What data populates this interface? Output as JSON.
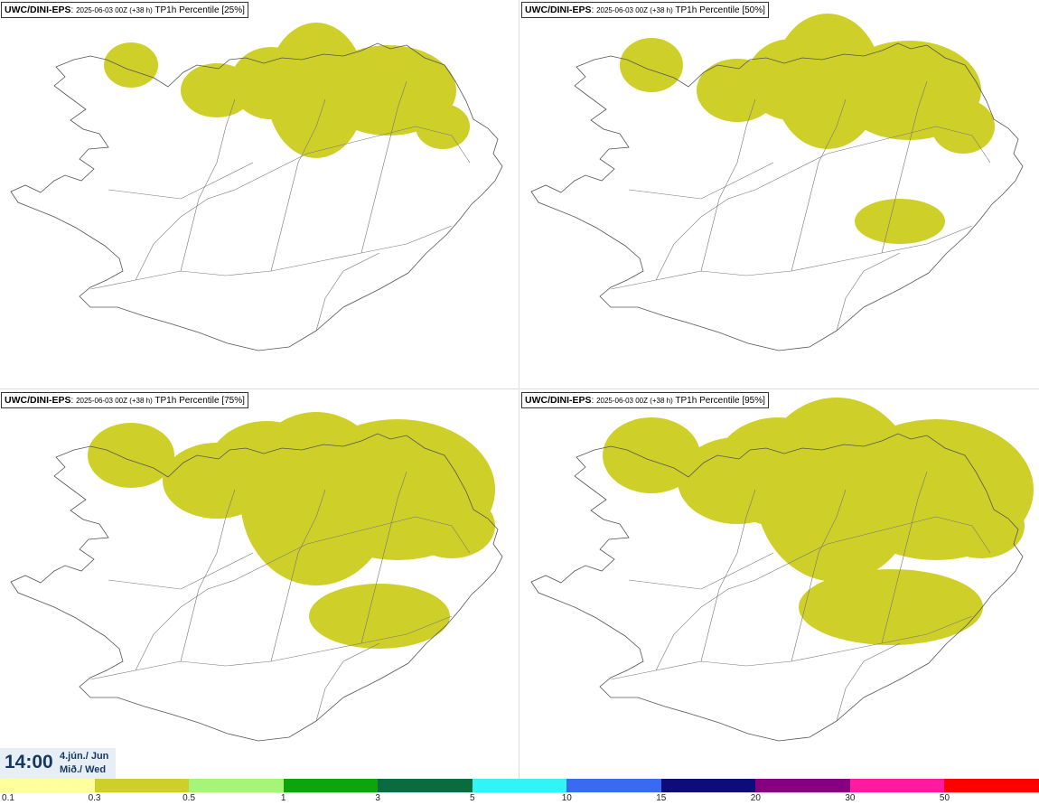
{
  "panels": [
    {
      "model": "UWC/DINI-EPS",
      "run": "2025-06-03 00Z (+38 h)",
      "field": "TP1h Percentile [25%]",
      "percentile": 25
    },
    {
      "model": "UWC/DINI-EPS",
      "run": "2025-06-03 00Z (+38 h)",
      "field": "TP1h Percentile [50%]",
      "percentile": 50
    },
    {
      "model": "UWC/DINI-EPS",
      "run": "2025-06-03 00Z (+38 h)",
      "field": "TP1h Percentile [75%]",
      "percentile": 75
    },
    {
      "model": "UWC/DINI-EPS",
      "run": "2025-06-03 00Z (+38 h)",
      "field": "TP1h Percentile [95%]",
      "percentile": 95
    }
  ],
  "timestamp": {
    "time": "14:00",
    "date_line1": "4.jún./ Jun",
    "date_line2": "Mið./ Wed"
  },
  "legend": {
    "labels": [
      "0.1",
      "0.3",
      "0.5",
      "1",
      "3",
      "5",
      "10",
      "15",
      "20",
      "30",
      "50"
    ],
    "colors": [
      "#ffff9e",
      "#cfcf29",
      "#a6f57a",
      "#0da50d",
      "#096b3e",
      "#32f4f4",
      "#3b6af2",
      "#0c0c7a",
      "#86007f",
      "#ff1a9e",
      "#ff0000"
    ]
  }
}
